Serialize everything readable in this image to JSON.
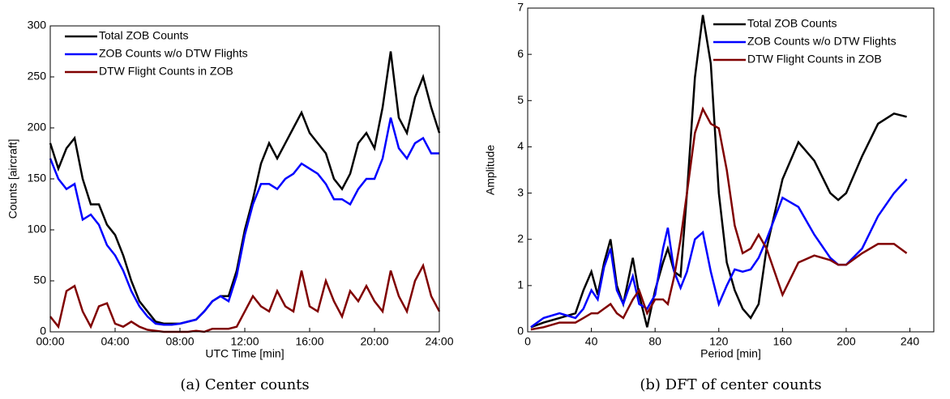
{
  "chart_data": [
    {
      "type": "line",
      "caption": "(a) Center counts",
      "x_label": "UTC Time [min]",
      "y_label": "Counts [aircraft]",
      "x": [
        0,
        0.5,
        1,
        1.5,
        2,
        2.5,
        3,
        3.5,
        4,
        4.5,
        5,
        5.5,
        6,
        6.5,
        7,
        7.5,
        8,
        8.5,
        9,
        9.5,
        10,
        10.5,
        11,
        11.5,
        12,
        12.5,
        13,
        13.5,
        14,
        14.5,
        15,
        15.5,
        16,
        16.5,
        17,
        17.5,
        18,
        18.5,
        19,
        19.5,
        20,
        20.5,
        21,
        21.5,
        22,
        22.5,
        23,
        23.5,
        24
      ],
      "series": [
        {
          "name": "Total ZOB Counts",
          "color": "#000000",
          "values": [
            185,
            160,
            180,
            190,
            150,
            125,
            125,
            105,
            95,
            75,
            50,
            30,
            20,
            10,
            8,
            8,
            8,
            10,
            12,
            20,
            30,
            35,
            35,
            60,
            100,
            130,
            165,
            185,
            170,
            185,
            200,
            215,
            195,
            185,
            175,
            150,
            140,
            155,
            185,
            195,
            180,
            220,
            275,
            210,
            195,
            230,
            250,
            220,
            195
          ]
        },
        {
          "name": "ZOB Counts w/o DTW Flights",
          "color": "#0000ff",
          "values": [
            170,
            150,
            140,
            145,
            110,
            115,
            105,
            85,
            75,
            60,
            40,
            25,
            15,
            8,
            7,
            7,
            8,
            10,
            12,
            20,
            30,
            35,
            30,
            55,
            95,
            125,
            145,
            145,
            140,
            150,
            155,
            165,
            160,
            155,
            145,
            130,
            130,
            125,
            140,
            150,
            150,
            170,
            210,
            180,
            170,
            185,
            190,
            175,
            175
          ]
        },
        {
          "name": "DTW Flight Counts in ZOB",
          "color": "#800000",
          "values": [
            15,
            5,
            40,
            45,
            20,
            5,
            25,
            28,
            8,
            5,
            10,
            5,
            2,
            1,
            0,
            0,
            0,
            0,
            1,
            0,
            3,
            3,
            3,
            5,
            20,
            35,
            25,
            20,
            40,
            25,
            20,
            60,
            25,
            20,
            50,
            30,
            15,
            40,
            30,
            45,
            30,
            20,
            60,
            35,
            20,
            50,
            65,
            35,
            20
          ]
        }
      ],
      "xlim": [
        0,
        24
      ],
      "xticks": [
        {
          "value": 0,
          "label": "00:00"
        },
        {
          "value": 4,
          "label": "04:00"
        },
        {
          "value": 8,
          "label": "08:00"
        },
        {
          "value": 12,
          "label": "12:00"
        },
        {
          "value": 16,
          "label": "16:00"
        },
        {
          "value": 20,
          "label": "20:00"
        },
        {
          "value": 24,
          "label": "24:00"
        }
      ],
      "ylim": [
        0,
        300
      ],
      "yticks": [
        0,
        50,
        100,
        150,
        200,
        250,
        300
      ],
      "legend": "upper left"
    },
    {
      "type": "line",
      "caption": "(b) DFT of center counts",
      "x_label": "Period [min]",
      "y_label": "Amplitude",
      "x": [
        2,
        10,
        20,
        30,
        35,
        40,
        44,
        48,
        52,
        56,
        60,
        66,
        70,
        75,
        80,
        85,
        88,
        92,
        96,
        100,
        105,
        110,
        115,
        120,
        125,
        130,
        135,
        140,
        145,
        150,
        160,
        170,
        180,
        190,
        195,
        200,
        210,
        220,
        230,
        238
      ],
      "series": [
        {
          "name": "Total ZOB Counts",
          "color": "#000000",
          "values": [
            0.1,
            0.2,
            0.3,
            0.4,
            0.9,
            1.3,
            0.8,
            1.5,
            2.0,
            1.0,
            0.6,
            1.6,
            0.8,
            0.1,
            0.9,
            1.5,
            1.8,
            1.3,
            1.2,
            3.0,
            5.5,
            6.85,
            5.8,
            3.0,
            1.5,
            0.9,
            0.5,
            0.3,
            0.6,
            1.8,
            3.3,
            4.1,
            3.7,
            3.0,
            2.85,
            3.0,
            3.8,
            4.5,
            4.72,
            4.65
          ]
        },
        {
          "name": "ZOB Counts w/o DTW Flights",
          "color": "#0000ff",
          "values": [
            0.1,
            0.3,
            0.4,
            0.3,
            0.5,
            0.9,
            0.7,
            1.4,
            1.8,
            0.9,
            0.6,
            1.2,
            0.6,
            0.5,
            0.8,
            1.8,
            2.25,
            1.3,
            0.95,
            1.3,
            2.0,
            2.15,
            1.3,
            0.6,
            1.0,
            1.35,
            1.3,
            1.35,
            1.6,
            2.0,
            2.9,
            2.7,
            2.1,
            1.6,
            1.45,
            1.45,
            1.8,
            2.5,
            3.0,
            3.3
          ]
        },
        {
          "name": "DTW Flight Counts in ZOB",
          "color": "#800000",
          "values": [
            0.05,
            0.1,
            0.2,
            0.2,
            0.3,
            0.4,
            0.4,
            0.5,
            0.6,
            0.4,
            0.3,
            0.7,
            0.9,
            0.4,
            0.7,
            0.7,
            0.6,
            1.2,
            2.0,
            3.0,
            4.3,
            4.82,
            4.5,
            4.4,
            3.5,
            2.3,
            1.7,
            1.8,
            2.1,
            1.8,
            0.8,
            1.5,
            1.65,
            1.55,
            1.45,
            1.45,
            1.7,
            1.9,
            1.9,
            1.7
          ]
        }
      ],
      "xlim": [
        0,
        255
      ],
      "xticks": [
        0,
        40,
        80,
        120,
        160,
        200,
        240
      ],
      "ylim": [
        0,
        7
      ],
      "yticks": [
        0,
        1,
        2,
        3,
        4,
        5,
        6,
        7
      ],
      "legend": "upper right"
    }
  ]
}
